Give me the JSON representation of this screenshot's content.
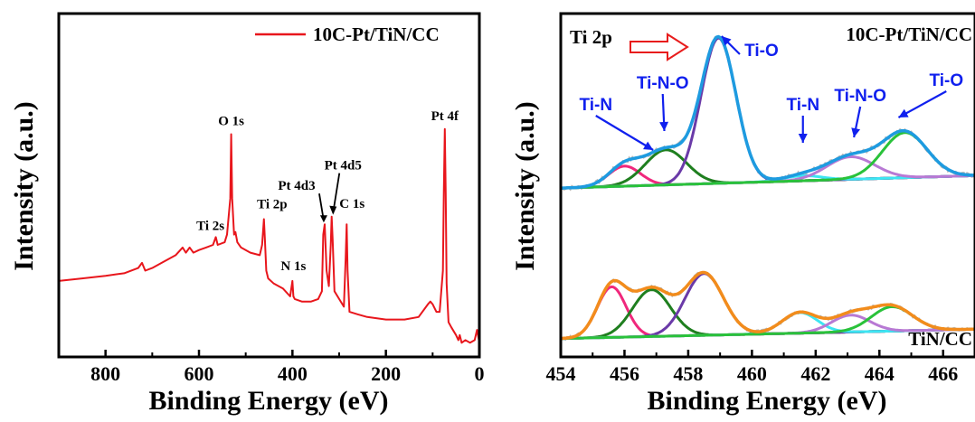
{
  "chart_data": [
    {
      "type": "line",
      "panel": "left",
      "xlabel": "Binding Energy (eV)",
      "ylabel": "Intensity (a.u.)",
      "xlim": [
        900,
        0
      ],
      "x_reversed": true,
      "xticks": [
        800,
        600,
        400,
        200,
        0
      ],
      "y_ticks_shown": false,
      "legend": {
        "placement": "top-right",
        "entries": [
          "10C-Pt/TiN/CC"
        ]
      },
      "series": [
        {
          "name": "10C-Pt/TiN/CC",
          "color": "#e8161c",
          "x": [
            900,
            850,
            800,
            760,
            730,
            722,
            715,
            700,
            680,
            650,
            635,
            628,
            620,
            612,
            600,
            585,
            570,
            564,
            560,
            545,
            540,
            533,
            531,
            529,
            525,
            522,
            518,
            510,
            490,
            470,
            465,
            461,
            459,
            456,
            452,
            440,
            420,
            405,
            400,
            398,
            395,
            380,
            360,
            345,
            337,
            334,
            331,
            327,
            322,
            318,
            316,
            314,
            310,
            300,
            290,
            286,
            284,
            282,
            278,
            260,
            240,
            200,
            160,
            130,
            110,
            105,
            100,
            92,
            85,
            78,
            76,
            74,
            72,
            70,
            66,
            60,
            50,
            45,
            42,
            38,
            30,
            20,
            10,
            5,
            2,
            0
          ],
          "y": [
            26,
            27,
            28,
            29,
            31,
            33,
            30,
            31,
            33,
            36,
            39,
            37,
            39,
            37,
            38,
            39,
            40,
            43,
            40,
            41,
            44,
            58,
            83,
            58,
            44,
            45,
            41,
            39,
            37,
            36,
            40,
            50,
            42,
            30,
            27,
            25,
            23,
            20,
            26,
            20,
            19,
            18,
            18,
            19,
            22,
            44,
            48,
            30,
            24,
            40,
            51,
            42,
            22,
            19,
            16,
            35,
            48,
            30,
            14,
            13,
            12,
            11,
            11,
            12,
            17,
            18,
            17,
            14,
            14,
            30,
            60,
            85,
            60,
            25,
            10,
            8,
            5,
            3,
            5,
            2,
            3,
            2,
            3,
            7,
            4,
            2
          ]
        }
      ],
      "annotations": [
        {
          "text": "O 1s",
          "x": 531,
          "y": 83
        },
        {
          "text": "Ti 2s",
          "x": 564,
          "y": 43
        },
        {
          "text": "Ti 2p",
          "x": 459,
          "y": 50
        },
        {
          "text": "N 1s",
          "x": 398,
          "y": 26
        },
        {
          "text": "Pt 4d3",
          "x": 333,
          "y": 48
        },
        {
          "text": "Pt 4d5",
          "x": 315,
          "y": 51
        },
        {
          "text": "C 1s",
          "x": 284,
          "y": 48
        },
        {
          "text": "Pt 4f",
          "x": 74,
          "y": 85
        }
      ]
    },
    {
      "type": "line",
      "panel": "right",
      "xlabel": "Binding Energy (eV)",
      "ylabel": "Intensity (a.u.)",
      "xlim": [
        454,
        467
      ],
      "xticks": [
        454,
        456,
        458,
        460,
        462,
        464,
        466
      ],
      "y_ticks_shown": false,
      "panel_title": "Ti 2p",
      "stacks": [
        {
          "label": "10C-Pt/TiN/CC",
          "baseline": [
            {
              "x": 454,
              "y": 5
            },
            {
              "x": 467,
              "y": 10
            }
          ],
          "components": [
            {
              "name": "Ti-N",
              "center": 456.0,
              "height": 8,
              "sigma": 0.5,
              "color": "#f0287c"
            },
            {
              "name": "Ti-N-O",
              "center": 457.3,
              "height": 14,
              "sigma": 0.65,
              "color": "#1f7f1f"
            },
            {
              "name": "Ti-O",
              "center": 458.95,
              "height": 58,
              "sigma": 0.55,
              "color": "#6a3aa8"
            },
            {
              "name": "Ti-N",
              "center": 461.6,
              "height": 2,
              "sigma": 0.6,
              "color": "#3de5f2"
            },
            {
              "name": "Ti-N-O",
              "center": 463.1,
              "height": 9,
              "sigma": 0.75,
              "color": "#b879d4"
            },
            {
              "name": "Ti-O",
              "center": 464.8,
              "height": 18,
              "sigma": 0.7,
              "color": "#29c23a"
            }
          ],
          "envelope_color": "#1e9be0"
        },
        {
          "label": "TiN/CC",
          "baseline": [
            {
              "x": 454,
              "y": 5
            },
            {
              "x": 467,
              "y": 10
            }
          ],
          "components": [
            {
              "name": "Ti-N",
              "center": 455.6,
              "height": 27,
              "sigma": 0.45,
              "color": "#f0287c"
            },
            {
              "name": "Ti-N-O",
              "center": 456.85,
              "height": 25,
              "sigma": 0.6,
              "color": "#1f7f1f"
            },
            {
              "name": "Ti-O",
              "center": 458.5,
              "height": 33,
              "sigma": 0.6,
              "color": "#6a3aa8"
            },
            {
              "name": "Ti-N",
              "center": 461.5,
              "height": 11,
              "sigma": 0.55,
              "color": "#3de5f2"
            },
            {
              "name": "Ti-N-O",
              "center": 463.1,
              "height": 9,
              "sigma": 0.6,
              "color": "#b879d4"
            },
            {
              "name": "Ti-O",
              "center": 464.4,
              "height": 13,
              "sigma": 0.65,
              "color": "#29c23a"
            }
          ],
          "envelope_color": "#f28c1c"
        }
      ],
      "component_labels": [
        {
          "text": "Ti-N",
          "x": 455.9
        },
        {
          "text": "Ti-N-O",
          "x": 457.4
        },
        {
          "text": "Ti-O",
          "x": 459.6
        },
        {
          "text": "Ti-N",
          "x": 461.6
        },
        {
          "text": "Ti-N-O",
          "x": 463.3
        },
        {
          "text": "Ti-O",
          "x": 465.3
        }
      ],
      "legend_labels": [
        "10C-Pt/TiN/CC",
        "TiN/CC"
      ]
    }
  ],
  "colors": {
    "label_blue": "#1020ee",
    "arrow_red": "#e81c1c",
    "gray_raw": "#b8b8b8"
  }
}
